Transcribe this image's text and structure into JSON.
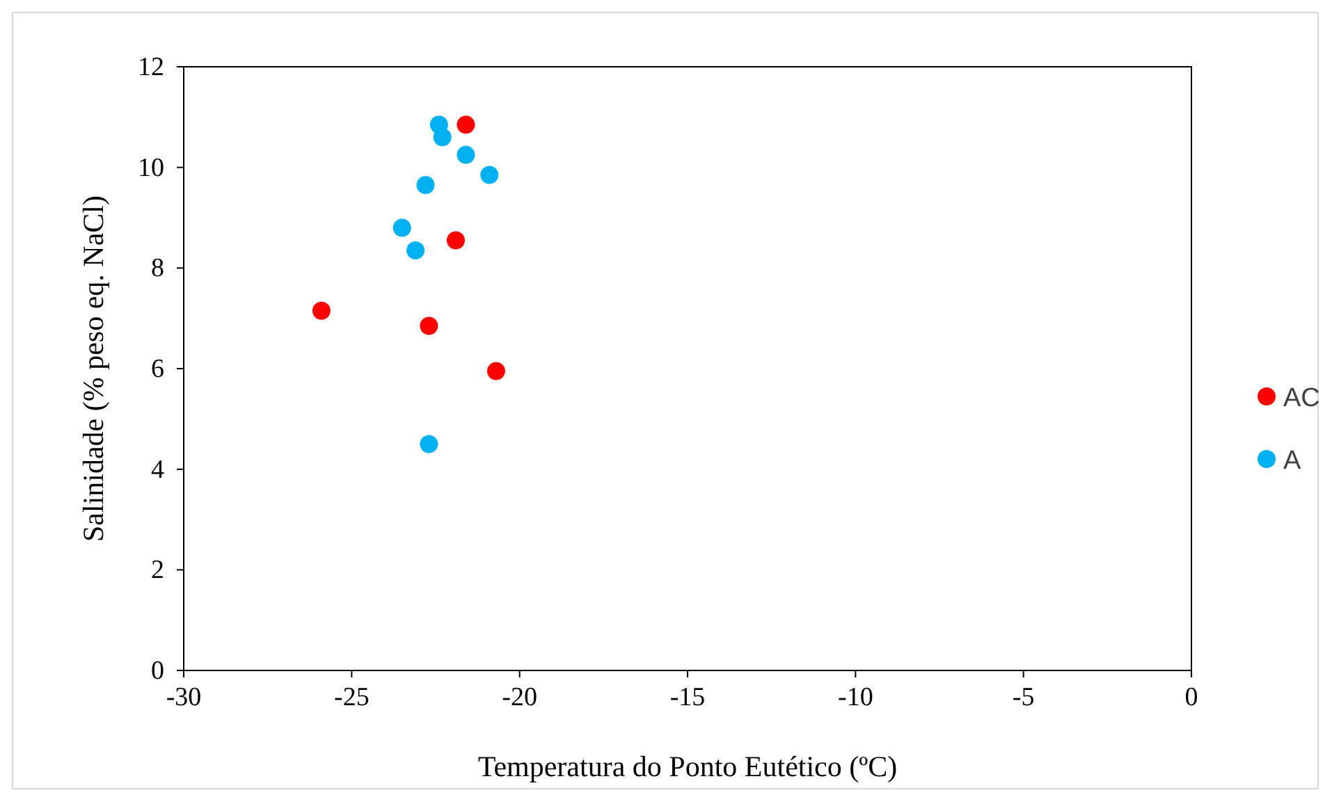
{
  "chart_data": {
    "type": "scatter",
    "xlabel": "Temperatura do Ponto Eutético (ºC)",
    "ylabel": "Salinidade (% peso eq. NaCl)",
    "xlim": [
      -30,
      0
    ],
    "xticks": [
      -30,
      -25,
      -20,
      -15,
      -10,
      -5,
      0
    ],
    "ylim": [
      0,
      12
    ],
    "yticks": [
      0,
      2,
      4,
      6,
      8,
      10,
      12
    ],
    "grid": false,
    "legend": "right",
    "marker": "circle",
    "series": [
      {
        "name": "AC",
        "color": "#ff0000",
        "x": [
          -25.9,
          -22.7,
          -21.9,
          -21.6,
          -20.7
        ],
        "values": [
          7.15,
          6.85,
          8.55,
          10.85,
          5.95
        ]
      },
      {
        "name": "A",
        "color": "#00b0f0",
        "x": [
          -22.4,
          -22.3,
          -21.6,
          -20.9,
          -22.8,
          -23.5,
          -23.1,
          -22.7
        ],
        "values": [
          10.85,
          10.6,
          10.25,
          9.85,
          9.65,
          8.8,
          8.35,
          4.5
        ]
      }
    ]
  }
}
